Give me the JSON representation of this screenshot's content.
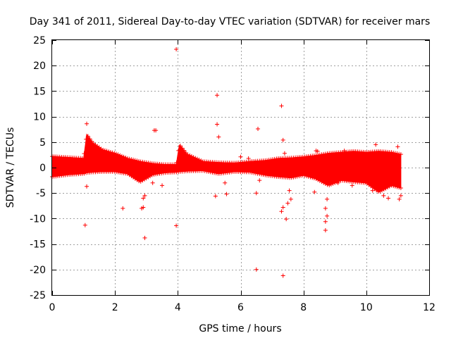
{
  "chart_data": {
    "type": "scatter",
    "title": "Day 341 of 2011, Sidereal Day-to-day VTEC variation (SDTVAR) for receiver mars",
    "xlabel": "GPS time / hours",
    "ylabel": "SDTVAR / TECUs",
    "xlim": [
      0,
      12
    ],
    "ylim": [
      -25,
      25
    ],
    "x_ticks": [
      0,
      2,
      4,
      6,
      8,
      10,
      12
    ],
    "y_ticks": [
      -25,
      -20,
      -15,
      -10,
      -5,
      0,
      5,
      10,
      15,
      20,
      25
    ],
    "x_tick_labels": [
      "0",
      "2",
      "4",
      "6",
      "8",
      "10",
      "12"
    ],
    "y_tick_labels": [
      "-25",
      "-20",
      "-15",
      "-10",
      "-5",
      "0",
      "5",
      "10",
      "15",
      "20",
      "25"
    ],
    "grid": true,
    "marker": "+",
    "color": "#ff0000",
    "x_range_of_data": [
      0,
      11.1
    ],
    "dense_band": [
      {
        "x": 0.0,
        "lo": -1.8,
        "hi": 2.2
      },
      {
        "x": 0.5,
        "lo": -1.4,
        "hi": 2.0
      },
      {
        "x": 1.0,
        "lo": -1.2,
        "hi": 1.8
      },
      {
        "x": 1.1,
        "lo": -1.0,
        "hi": 6.5
      },
      {
        "x": 1.3,
        "lo": -0.9,
        "hi": 4.8
      },
      {
        "x": 1.6,
        "lo": -0.8,
        "hi": 3.5
      },
      {
        "x": 2.0,
        "lo": -0.8,
        "hi": 2.8
      },
      {
        "x": 2.4,
        "lo": -1.2,
        "hi": 1.8
      },
      {
        "x": 2.8,
        "lo": -2.8,
        "hi": 1.2
      },
      {
        "x": 3.2,
        "lo": -1.4,
        "hi": 0.8
      },
      {
        "x": 3.6,
        "lo": -1.0,
        "hi": 0.6
      },
      {
        "x": 3.95,
        "lo": -0.9,
        "hi": 0.6
      },
      {
        "x": 4.05,
        "lo": -0.8,
        "hi": 4.5
      },
      {
        "x": 4.3,
        "lo": -0.7,
        "hi": 2.6
      },
      {
        "x": 4.8,
        "lo": -0.6,
        "hi": 1.2
      },
      {
        "x": 5.3,
        "lo": -1.2,
        "hi": 1.0
      },
      {
        "x": 5.8,
        "lo": -0.8,
        "hi": 0.9
      },
      {
        "x": 6.3,
        "lo": -0.9,
        "hi": 1.2
      },
      {
        "x": 6.8,
        "lo": -1.5,
        "hi": 1.4
      },
      {
        "x": 7.2,
        "lo": -1.8,
        "hi": 1.8
      },
      {
        "x": 7.6,
        "lo": -2.0,
        "hi": 1.9
      },
      {
        "x": 8.0,
        "lo": -1.5,
        "hi": 2.1
      },
      {
        "x": 8.4,
        "lo": -2.2,
        "hi": 2.4
      },
      {
        "x": 8.8,
        "lo": -3.5,
        "hi": 2.8
      },
      {
        "x": 9.2,
        "lo": -2.5,
        "hi": 3.0
      },
      {
        "x": 9.6,
        "lo": -2.8,
        "hi": 3.2
      },
      {
        "x": 10.0,
        "lo": -3.0,
        "hi": 3.0
      },
      {
        "x": 10.4,
        "lo": -4.8,
        "hi": 3.2
      },
      {
        "x": 10.8,
        "lo": -3.5,
        "hi": 3.0
      },
      {
        "x": 11.1,
        "lo": -4.0,
        "hi": 2.6
      }
    ],
    "outliers": [
      [
        3.95,
        23.2
      ],
      [
        5.25,
        14.2
      ],
      [
        7.3,
        12.1
      ],
      [
        1.1,
        8.6
      ],
      [
        5.25,
        8.5
      ],
      [
        3.25,
        7.3
      ],
      [
        6.55,
        7.6
      ],
      [
        3.3,
        7.3
      ],
      [
        5.3,
        6.0
      ],
      [
        7.35,
        5.4
      ],
      [
        1.1,
        -3.7
      ],
      [
        1.05,
        -11.3
      ],
      [
        2.25,
        -8.0
      ],
      [
        2.85,
        -8.0
      ],
      [
        2.9,
        -7.8
      ],
      [
        2.95,
        -13.8
      ],
      [
        2.9,
        -6.0
      ],
      [
        2.95,
        -5.5
      ],
      [
        3.2,
        -3.0
      ],
      [
        3.5,
        -3.5
      ],
      [
        3.95,
        -11.4
      ],
      [
        5.2,
        -5.6
      ],
      [
        5.55,
        -5.2
      ],
      [
        5.5,
        -3.0
      ],
      [
        6.0,
        2.1
      ],
      [
        6.25,
        1.8
      ],
      [
        6.5,
        -5.0
      ],
      [
        6.5,
        -20.0
      ],
      [
        6.6,
        -2.5
      ],
      [
        7.35,
        -21.2
      ],
      [
        7.3,
        -8.6
      ],
      [
        7.35,
        -7.8
      ],
      [
        7.45,
        -10.1
      ],
      [
        7.5,
        -7.0
      ],
      [
        7.4,
        2.8
      ],
      [
        7.6,
        -6.2
      ],
      [
        7.55,
        -4.5
      ],
      [
        8.4,
        3.3
      ],
      [
        8.45,
        3.2
      ],
      [
        8.35,
        -4.8
      ],
      [
        8.7,
        -12.3
      ],
      [
        8.7,
        -10.6
      ],
      [
        8.75,
        -9.5
      ],
      [
        8.7,
        -8.0
      ],
      [
        8.75,
        -6.2
      ],
      [
        9.1,
        -3.0
      ],
      [
        9.55,
        -3.5
      ],
      [
        10.3,
        4.5
      ],
      [
        10.2,
        -4.5
      ],
      [
        10.55,
        -5.5
      ],
      [
        10.7,
        -6.0
      ],
      [
        11.0,
        4.1
      ],
      [
        11.05,
        -6.2
      ],
      [
        11.1,
        -5.5
      ],
      [
        9.3,
        3.3
      ]
    ]
  }
}
